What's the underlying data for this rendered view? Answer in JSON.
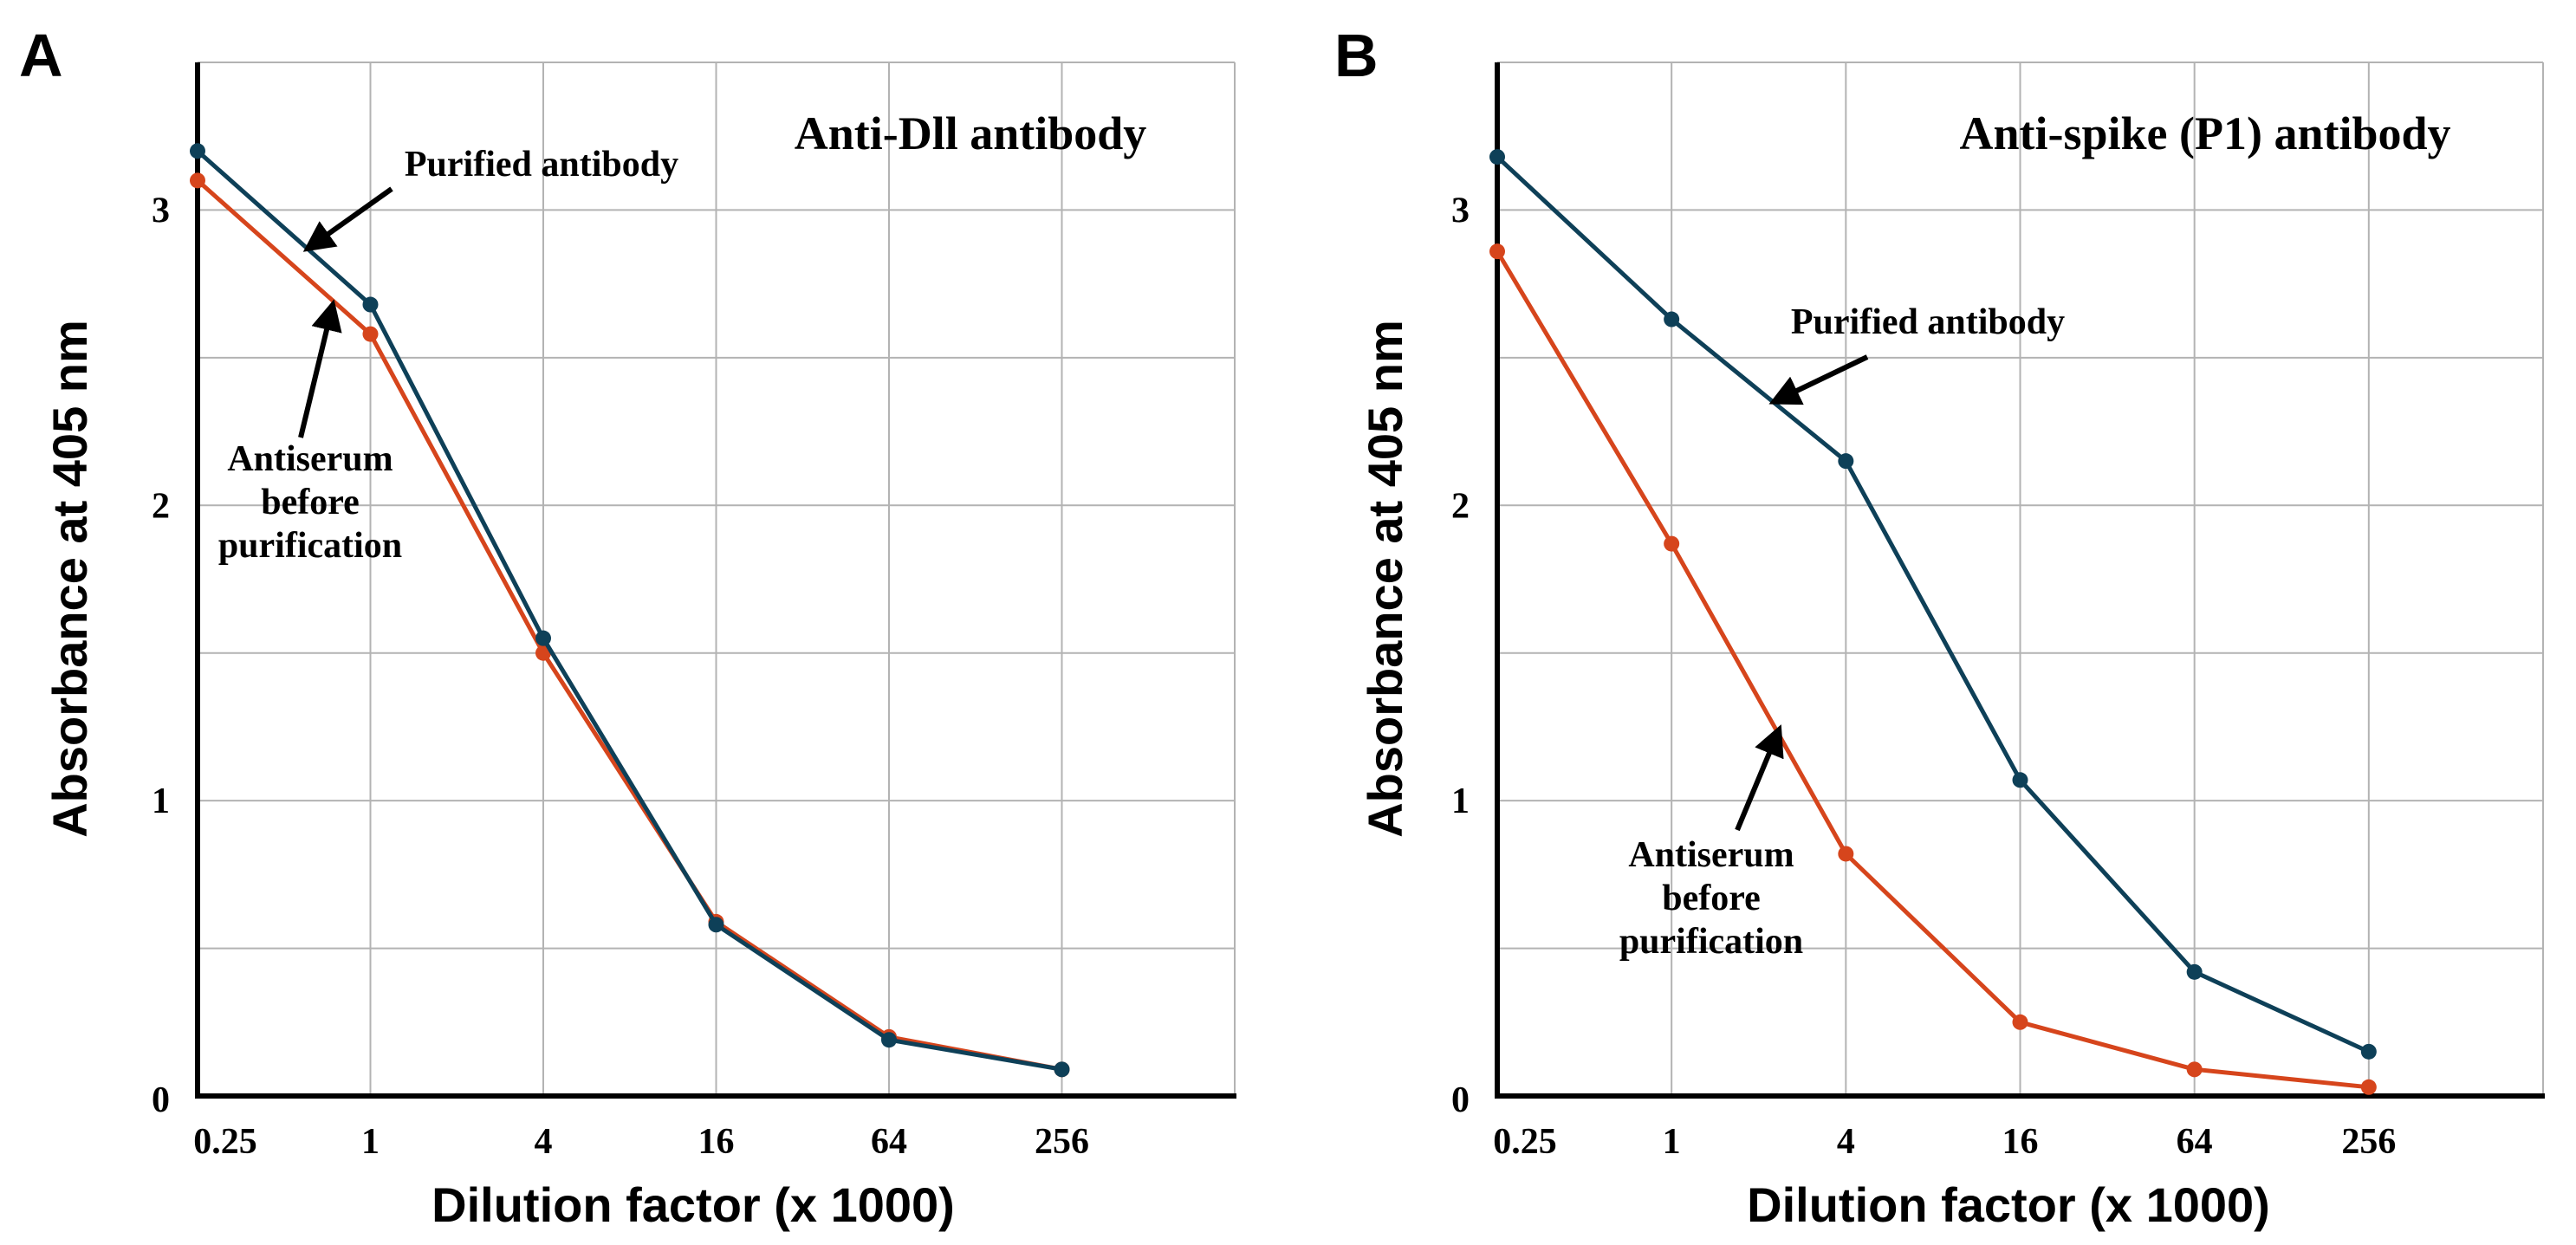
{
  "chart_data": [
    {
      "panel": "A",
      "type": "line",
      "title": "Anti-Dll antibody",
      "xlabel": "Dilution factor (x 1000)",
      "ylabel": "Absorbance at 405 nm",
      "x_scale": "log2",
      "xlim": [
        0.25,
        1024
      ],
      "ylim": [
        0,
        3.5
      ],
      "categories": [
        "0.25",
        "1",
        "4",
        "16",
        "64",
        "256"
      ],
      "x": [
        0.25,
        1,
        4,
        16,
        64,
        256
      ],
      "y_ticks": [
        "0",
        "1",
        "2",
        "3"
      ],
      "grid": true,
      "series": [
        {
          "name": "Purified antibody",
          "color": "#0e4058",
          "values": [
            3.2,
            2.68,
            1.55,
            0.58,
            0.19,
            0.09
          ]
        },
        {
          "name": "Antiserum before purification",
          "color": "#d6451c",
          "values": [
            3.1,
            2.58,
            1.5,
            0.59,
            0.2,
            0.09
          ]
        }
      ],
      "annotations": [
        {
          "lines": [
            "Purified antibody"
          ],
          "series": "Purified antibody"
        },
        {
          "lines": [
            "Antiserum",
            "before",
            "purification"
          ],
          "series": "Antiserum before purification"
        }
      ]
    },
    {
      "panel": "B",
      "type": "line",
      "title": "Anti-spike (P1) antibody",
      "xlabel": "Dilution factor (x 1000)",
      "ylabel": "Absorbance at 405 nm",
      "x_scale": "log2",
      "xlim": [
        0.25,
        1024
      ],
      "ylim": [
        0,
        3.5
      ],
      "categories": [
        "0.25",
        "1",
        "4",
        "16",
        "64",
        "256"
      ],
      "x": [
        0.25,
        1,
        4,
        16,
        64,
        256
      ],
      "y_ticks": [
        "0",
        "1",
        "2",
        "3"
      ],
      "grid": true,
      "series": [
        {
          "name": "Purified antibody",
          "color": "#0e4058",
          "values": [
            3.18,
            2.63,
            2.15,
            1.07,
            0.42,
            0.15
          ]
        },
        {
          "name": "Antiserum before purification",
          "color": "#d6451c",
          "values": [
            2.86,
            1.87,
            0.82,
            0.25,
            0.09,
            0.03
          ]
        }
      ],
      "annotations": [
        {
          "lines": [
            "Purified antibody"
          ],
          "series": "Purified antibody"
        },
        {
          "lines": [
            "Antiserum",
            "before",
            "purification"
          ],
          "series": "Antiserum before purification"
        }
      ]
    }
  ]
}
